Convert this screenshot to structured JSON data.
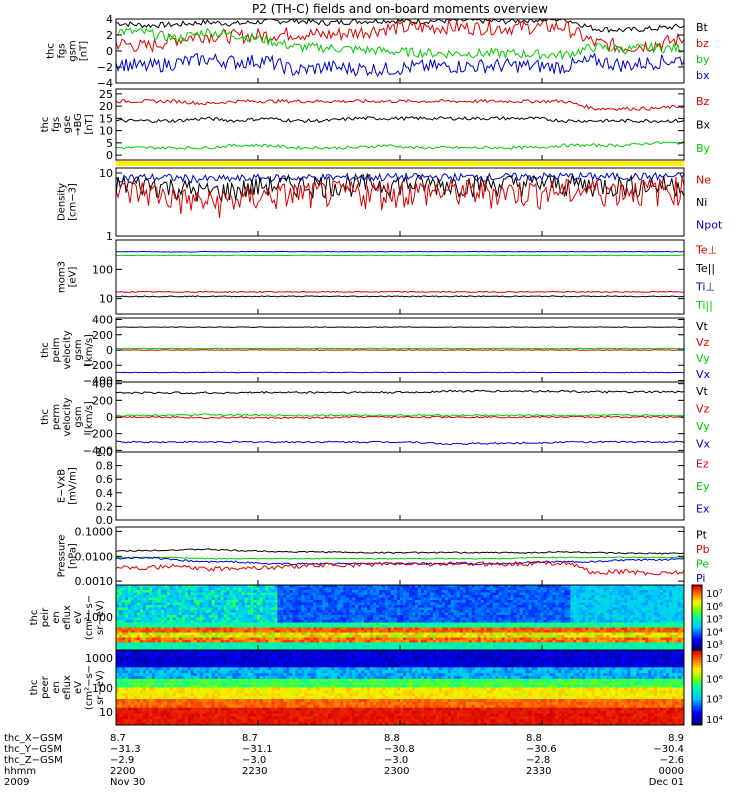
{
  "title": "P2 (TH-C) fields and on-board moments overview",
  "colors": {
    "black": "#000000",
    "red": "#dd0000",
    "green": "#00cc00",
    "blue": "#0000cc",
    "yellow": "#ffee00"
  },
  "chart_data": [
    {
      "type": "line",
      "ylabel": [
        "thc",
        "fgs",
        "gsm",
        "[nT]"
      ],
      "ylim": [
        -4,
        4
      ],
      "ticks": [
        "4",
        "2",
        "0",
        "−2",
        "−4"
      ],
      "tickvals": [
        4,
        2,
        0,
        -2,
        -4
      ],
      "legend": [
        {
          "name": "Bt",
          "color": "#000000"
        },
        {
          "name": "bz",
          "color": "#dd0000"
        },
        {
          "name": "by",
          "color": "#00cc00"
        },
        {
          "name": "bx",
          "color": "#0000cc"
        }
      ],
      "series": [
        {
          "name": "Bt",
          "color": "#000000",
          "values": [
            3.5,
            3.2,
            3.3,
            3.6,
            3.4,
            3.7,
            3.8,
            3.5,
            3.7,
            3.8,
            3.7,
            3.8,
            3.8,
            3.7,
            3.9,
            4.0,
            2.8,
            2.6,
            2.8,
            3.1
          ],
          "noise": 0.35
        },
        {
          "name": "bz",
          "color": "#dd0000",
          "values": [
            1.0,
            0.5,
            1.5,
            2.0,
            1.8,
            2.0,
            2.2,
            2.0,
            2.3,
            2.8,
            2.9,
            3.0,
            2.9,
            2.9,
            3.0,
            3.0,
            1.0,
            0.5,
            0.8,
            1.5
          ],
          "noise": 0.9
        },
        {
          "name": "by",
          "color": "#00cc00",
          "values": [
            2.5,
            2.3,
            1.5,
            2.4,
            2.0,
            1.4,
            0.5,
            0.4,
            0.2,
            0.0,
            -0.2,
            -0.3,
            -0.3,
            -0.3,
            -0.4,
            -0.5,
            0.5,
            0.2,
            0.4,
            0.3
          ],
          "noise": 0.6
        },
        {
          "name": "bx",
          "color": "#0000cc",
          "values": [
            -1.5,
            -2.0,
            -1.5,
            -1.0,
            -1.4,
            -1.2,
            -2.5,
            -2.0,
            -2.2,
            -2.3,
            -2.0,
            -1.9,
            -1.9,
            -1.8,
            -1.9,
            -2.0,
            -1.2,
            -1.8,
            -1.4,
            -1.0
          ],
          "noise": 0.9
        }
      ]
    },
    {
      "type": "line",
      "ylabel": [
        "thc",
        "fgs",
        "gse",
        "→BG",
        "[nT]"
      ],
      "ylim": [
        -2,
        27
      ],
      "ticks": [
        "25",
        "20",
        "15",
        "10",
        "5",
        "0"
      ],
      "tickvals": [
        25,
        20,
        15,
        10,
        5,
        0
      ],
      "legend": [
        {
          "name": "Bz",
          "color": "#dd0000"
        },
        {
          "name": "Bx",
          "color": "#000000"
        },
        {
          "name": "By",
          "color": "#00cc00"
        }
      ],
      "series": [
        {
          "name": "Bz",
          "color": "#dd0000",
          "values": [
            22,
            22,
            22,
            21,
            22,
            22,
            22,
            22,
            22,
            22,
            22,
            22,
            22,
            22,
            22,
            22,
            19,
            19,
            19,
            20
          ],
          "noise": 0.7
        },
        {
          "name": "Bx",
          "color": "#000000",
          "values": [
            14,
            14,
            14,
            15,
            14,
            15,
            14,
            14,
            15,
            15,
            15,
            15,
            15,
            15,
            15,
            14,
            14,
            14,
            14,
            14
          ],
          "noise": 0.7
        },
        {
          "name": "By",
          "color": "#00cc00",
          "values": [
            3,
            3,
            3,
            3,
            4,
            4,
            3,
            3,
            3,
            4,
            3,
            3,
            3,
            3,
            3,
            4,
            4,
            4,
            5,
            5
          ],
          "noise": 0.6
        }
      ]
    },
    {
      "type": "line",
      "ylabel": [
        "Density",
        "[cm−3]"
      ],
      "yscale": "log",
      "ylim": [
        1,
        12
      ],
      "ticks": [
        "10",
        "1"
      ],
      "tickvals": [
        10,
        1
      ],
      "legend": [
        {
          "name": "Ne",
          "color": "#dd0000"
        },
        {
          "name": "Ni",
          "color": "#000000"
        },
        {
          "name": "Npot",
          "color": "#0000cc"
        }
      ],
      "series": [
        {
          "name": "Npot",
          "color": "#0000cc",
          "values": [
            8.5,
            8.5,
            8.4,
            8.0,
            8.1,
            8.3,
            8.4,
            8.5,
            8.5,
            8.6,
            8.6,
            8.6,
            8.6,
            8.6,
            8.8,
            8.9,
            8.8,
            8.8,
            8.8,
            8.9
          ],
          "noise": 0.15
        },
        {
          "name": "Ni",
          "color": "#000000",
          "values": [
            6.5,
            6.8,
            6.0,
            5.0,
            5.5,
            6.5,
            6.6,
            6.7,
            6.8,
            6.8,
            6.8,
            6.8,
            6.8,
            6.8,
            6.9,
            6.8,
            6.6,
            6.5,
            6.5,
            6.8
          ],
          "noise": 0.4
        },
        {
          "name": "Ne",
          "color": "#dd0000",
          "values": [
            5.0,
            5.2,
            4.0,
            3.5,
            3.8,
            4.5,
            4.8,
            5.0,
            5.0,
            5.1,
            5.2,
            5.2,
            5.2,
            5.2,
            5.2,
            5.3,
            5.5,
            5.5,
            5.4,
            6.0
          ],
          "noise": 0.5
        }
      ]
    },
    {
      "type": "line",
      "ylabel": [
        "mom3",
        "[eV]"
      ],
      "yscale": "log",
      "ylim": [
        3,
        1000
      ],
      "ticks": [
        "100",
        "10"
      ],
      "tickvals": [
        100,
        10
      ],
      "legend": [
        {
          "name": "Te⊥",
          "color": "#dd0000"
        },
        {
          "name": "Te||",
          "color": "#000000"
        },
        {
          "name": "Ti⊥",
          "color": "#0000cc"
        },
        {
          "name": "Ti||",
          "color": "#00cc00"
        }
      ],
      "series": [
        {
          "name": "Ti⊥",
          "color": "#0000cc",
          "values": [
            400,
            400,
            390,
            400,
            400,
            400,
            400,
            400,
            400,
            400,
            400,
            400,
            400,
            400,
            400,
            400,
            400,
            400,
            400,
            400
          ],
          "noise": 0.02
        },
        {
          "name": "Ti||",
          "color": "#00cc00",
          "values": [
            300,
            300,
            300,
            300,
            300,
            300,
            300,
            300,
            300,
            300,
            300,
            300,
            300,
            300,
            300,
            300,
            300,
            300,
            300,
            300
          ],
          "noise": 0.02
        },
        {
          "name": "Te⊥",
          "color": "#dd0000",
          "values": [
            17,
            17,
            17,
            17,
            17,
            17,
            17,
            17,
            17,
            17,
            17,
            17,
            17,
            17,
            17,
            17,
            17,
            17,
            17,
            17
          ],
          "noise": 0.04
        },
        {
          "name": "Te||",
          "color": "#000000",
          "values": [
            12,
            12,
            12,
            12,
            12,
            12,
            12,
            12,
            12,
            12,
            12,
            12,
            12,
            12,
            12,
            12,
            12,
            12,
            12,
            12
          ],
          "noise": 0.04
        }
      ]
    },
    {
      "type": "line",
      "ylabel": [
        "thc",
        "peim",
        "velocity",
        "gsm",
        "[km/s]"
      ],
      "ylim": [
        -420,
        420
      ],
      "ticks": [
        "400",
        "200",
        "0",
        "−200",
        "−400"
      ],
      "tickvals": [
        400,
        200,
        0,
        -200,
        -400
      ],
      "legend": [
        {
          "name": "Vt",
          "color": "#000000"
        },
        {
          "name": "Vz",
          "color": "#dd0000"
        },
        {
          "name": "Vy",
          "color": "#00cc00"
        },
        {
          "name": "Vx",
          "color": "#0000cc"
        }
      ],
      "series": [
        {
          "name": "Vt",
          "color": "#000000",
          "values": [
            300,
            300,
            300,
            300,
            300,
            300,
            300,
            300,
            300,
            300,
            300,
            300,
            300,
            300,
            300,
            300,
            300,
            300,
            300,
            300
          ],
          "noise": 4
        },
        {
          "name": "Vy",
          "color": "#00cc00",
          "values": [
            20,
            20,
            20,
            20,
            20,
            20,
            20,
            20,
            20,
            20,
            20,
            20,
            20,
            20,
            20,
            20,
            20,
            20,
            20,
            20
          ],
          "noise": 4
        },
        {
          "name": "Vz",
          "color": "#dd0000",
          "values": [
            0,
            0,
            0,
            0,
            0,
            0,
            0,
            0,
            0,
            0,
            0,
            0,
            0,
            0,
            0,
            0,
            0,
            0,
            0,
            0
          ],
          "noise": 4
        },
        {
          "name": "Vx",
          "color": "#0000cc",
          "values": [
            -295,
            -295,
            -295,
            -295,
            -295,
            -295,
            -295,
            -295,
            -295,
            -295,
            -295,
            -295,
            -295,
            -295,
            -295,
            -295,
            -295,
            -295,
            -295,
            -295
          ],
          "noise": 3
        }
      ]
    },
    {
      "type": "line",
      "ylabel": [
        "thc",
        "perm",
        "velocity",
        "gsm",
        "[km/s]"
      ],
      "ylim": [
        -420,
        420
      ],
      "ticks": [
        "400",
        "200",
        "0",
        "−200",
        "−400"
      ],
      "tickvals": [
        400,
        200,
        0,
        -200,
        -400
      ],
      "legend": [
        {
          "name": "Vt",
          "color": "#000000"
        },
        {
          "name": "Vz",
          "color": "#dd0000"
        },
        {
          "name": "Vy",
          "color": "#00cc00"
        },
        {
          "name": "Vx",
          "color": "#0000cc"
        }
      ],
      "series": [
        {
          "name": "Vt",
          "color": "#000000",
          "values": [
            290,
            290,
            290,
            290,
            290,
            295,
            295,
            295,
            295,
            295,
            295,
            310,
            310,
            310,
            310,
            310,
            300,
            300,
            300,
            300
          ],
          "noise": 12
        },
        {
          "name": "Vy",
          "color": "#00cc00",
          "values": [
            20,
            20,
            20,
            30,
            25,
            20,
            20,
            20,
            20,
            20,
            20,
            20,
            20,
            20,
            20,
            20,
            20,
            20,
            20,
            20
          ],
          "noise": 10
        },
        {
          "name": "Vz",
          "color": "#dd0000",
          "values": [
            0,
            0,
            0,
            -10,
            -5,
            -10,
            -10,
            -10,
            0,
            0,
            0,
            0,
            0,
            0,
            0,
            0,
            0,
            0,
            0,
            0
          ],
          "noise": 10
        },
        {
          "name": "Vx",
          "color": "#0000cc",
          "values": [
            -300,
            -300,
            -300,
            -300,
            -300,
            -300,
            -300,
            -300,
            -300,
            -300,
            -300,
            -325,
            -320,
            -315,
            -310,
            -300,
            -300,
            -300,
            -300,
            -300
          ],
          "noise": 10
        }
      ]
    },
    {
      "type": "line",
      "ylabel": [
        "E−VxB",
        "[mV/m]"
      ],
      "ylim": [
        0,
        1
      ],
      "ticks": [
        "1.0",
        "0.8",
        "0.6",
        "0.4",
        "0.2",
        "0.0"
      ],
      "tickvals": [
        1,
        0.8,
        0.6,
        0.4,
        0.2,
        0
      ],
      "legend": [
        {
          "name": "Ez",
          "color": "#dd0000"
        },
        {
          "name": "Ey",
          "color": "#00cc00"
        },
        {
          "name": "Ex",
          "color": "#0000cc"
        }
      ],
      "series": []
    },
    {
      "type": "line",
      "ylabel": [
        "Pressure",
        "[nPa]"
      ],
      "yscale": "log",
      "ylim": [
        0.0007,
        0.15
      ],
      "ticks": [
        "0.1000",
        "0.0100",
        "0.0010"
      ],
      "tickvals": [
        0.1,
        0.01,
        0.001
      ],
      "legend": [
        {
          "name": "Pt",
          "color": "#000000"
        },
        {
          "name": "Pb",
          "color": "#dd0000"
        },
        {
          "name": "Pe",
          "color": "#00cc00"
        },
        {
          "name": "Pi",
          "color": "#0000cc"
        }
      ],
      "series": [
        {
          "name": "Pt",
          "color": "#000000",
          "values": [
            0.016,
            0.017,
            0.018,
            0.019,
            0.017,
            0.016,
            0.015,
            0.015,
            0.014,
            0.014,
            0.014,
            0.014,
            0.014,
            0.014,
            0.014,
            0.015,
            0.014,
            0.013,
            0.013,
            0.013
          ],
          "noise": 0.06
        },
        {
          "name": "Pe",
          "color": "#00cc00",
          "values": [
            0.009,
            0.009,
            0.009,
            0.008,
            0.008,
            0.008,
            0.008,
            0.008,
            0.008,
            0.008,
            0.008,
            0.008,
            0.008,
            0.008,
            0.009,
            0.009,
            0.009,
            0.009,
            0.009,
            0.009
          ],
          "noise": 0.04
        },
        {
          "name": "Pi",
          "color": "#0000cc",
          "values": [
            0.008,
            0.009,
            0.007,
            0.006,
            0.006,
            0.005,
            0.005,
            0.005,
            0.005,
            0.005,
            0.005,
            0.005,
            0.005,
            0.005,
            0.006,
            0.006,
            0.006,
            0.007,
            0.007,
            0.008
          ],
          "noise": 0.08
        },
        {
          "name": "Pb",
          "color": "#dd0000",
          "values": [
            0.004,
            0.0035,
            0.004,
            0.003,
            0.0035,
            0.0035,
            0.004,
            0.0045,
            0.0045,
            0.005,
            0.005,
            0.005,
            0.005,
            0.005,
            0.0052,
            0.0055,
            0.002,
            0.0025,
            0.002,
            0.0025
          ],
          "noise": 0.2
        }
      ]
    },
    {
      "type": "heatmap",
      "ylabel": [
        "thc",
        "peir",
        "en",
        "eflux",
        "eV",
        "(cm²−s−",
        "sr−eV)"
      ],
      "ytick": "1000",
      "colorbar": {
        "type": "log",
        "ticks": [
          "10⁷",
          "10⁶",
          "10⁵",
          "10⁴",
          "10³"
        ]
      }
    },
    {
      "type": "heatmap",
      "ylabel": [
        "thc",
        "peer",
        "en",
        "eflux",
        "eV",
        "(cm²−s−",
        "sr−eV)"
      ],
      "yticks": [
        "1000",
        "100",
        "10"
      ],
      "colorbar": {
        "type": "log",
        "ticks": [
          "10⁷",
          "10⁶",
          "10⁵",
          "10⁴"
        ]
      }
    }
  ],
  "xaxis": {
    "labels": [
      "thc_X−GSM",
      "thc_Y−GSM",
      "thc_Z−GSM",
      "hhmm",
      "2009"
    ],
    "ticks": [
      {
        "r": [
          "8.7",
          "−31.3",
          "−2.9",
          "2200",
          "Nov 30"
        ]
      },
      {
        "r": [
          "8.7",
          "−31.1",
          "−3.0",
          "2230",
          ""
        ]
      },
      {
        "r": [
          "8.8",
          "−30.8",
          "−3.0",
          "2300",
          ""
        ]
      },
      {
        "r": [
          "8.8",
          "−30.6",
          "−2.8",
          "2330",
          ""
        ]
      },
      {
        "r": [
          "8.9",
          "−30.4",
          "−2.6",
          "0000",
          "Dec 01"
        ]
      }
    ]
  }
}
